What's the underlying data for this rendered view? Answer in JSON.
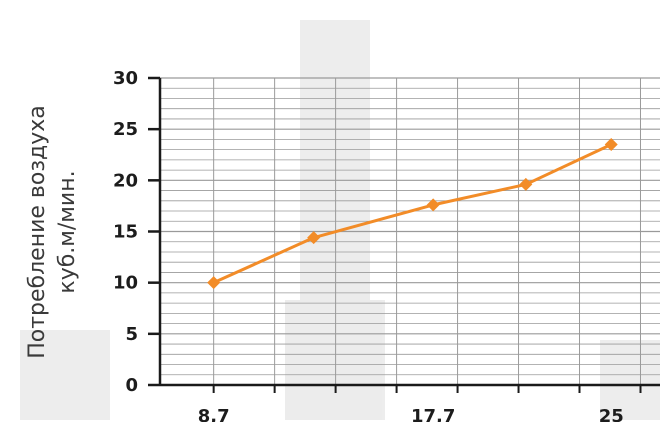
{
  "chart_data": {
    "type": "line",
    "title": "",
    "xlabel": "",
    "ylabel_lines": [
      "Потребление воздуха",
      "куб.м/мин."
    ],
    "ylim": [
      0,
      30
    ],
    "yticks": [
      "0",
      "5",
      "10",
      "15",
      "20",
      "25",
      "30"
    ],
    "xticks": [
      "8,7",
      "17,7",
      "25"
    ],
    "grid": true,
    "series": [
      {
        "x": [
          8.7,
          12.8,
          17.7,
          21.5,
          25
        ],
        "y": [
          10,
          14.4,
          17.6,
          19.6,
          23.5
        ]
      }
    ],
    "colors": {
      "line": "#f28c28",
      "grid": "#9a9a9a",
      "axis": "#1a1a1a"
    }
  }
}
